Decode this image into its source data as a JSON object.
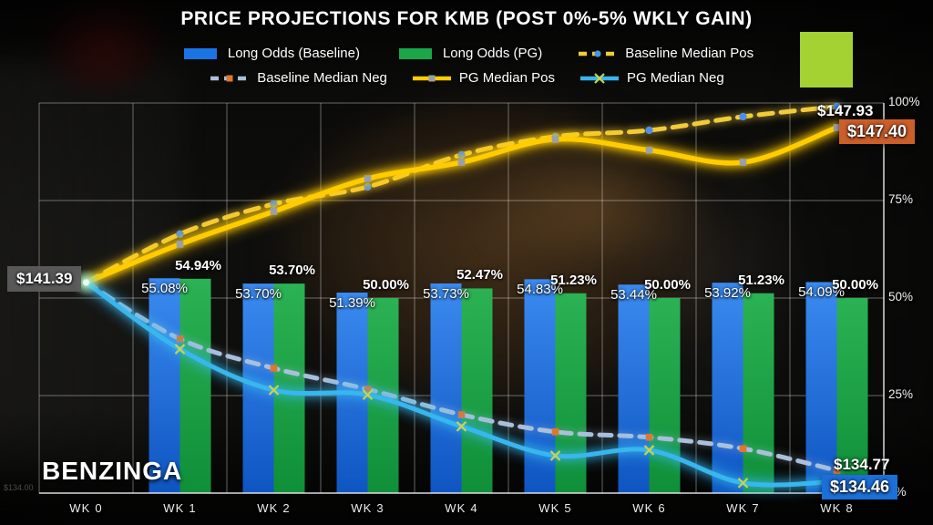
{
  "title": "PRICE PROJECTIONS FOR KMB (POST 0%-5% WKLY GAIN)",
  "watermark": "BENZINGA",
  "labels": {
    "start_price": "$141.39",
    "baseline_pos_end": "$147.93",
    "pg_pos_end": "$147.40",
    "baseline_neg_end": "$134.77",
    "pg_neg_end": "$134.46",
    "faint_axis": "$134.00"
  },
  "colors": {
    "blue_bar_top": "#3B8BF0",
    "blue_bar_bottom": "#0E55C2",
    "green_bar_top": "#2BB254",
    "green_bar_bottom": "#0F8F38",
    "baseline_pos_line": "#F2CB3A",
    "pg_pos_line": "#FFCC00",
    "baseline_neg_line": "#A9C0DC",
    "pg_neg_line": "#38B6EE",
    "marker_blue": "#4C8FE8",
    "marker_orange": "#E0762F",
    "marker_gray": "#9AA0A8",
    "marker_x": "#C9D24F",
    "box_orange": "#CC5E2A",
    "box_blue": "#1B6FD8",
    "box_gray": "rgba(92,92,92,0.95)",
    "green_rect": "#A4D233",
    "grid": "rgba(255,255,255,0.38)",
    "axis": "rgba(255,255,255,0.85)"
  },
  "legend": {
    "rows": [
      [
        {
          "label": "Long Odds (Baseline)",
          "swatch": "bar",
          "color": "#1B74E4"
        },
        {
          "label": "Long Odds (PG)",
          "swatch": "bar",
          "color": "#1CA64A"
        },
        {
          "label": "Baseline Median Pos",
          "swatch": "dash-dot",
          "color": "#F2CB3A",
          "marker_color": "#4C8FE8"
        }
      ],
      [
        {
          "label": "Baseline Median Neg",
          "swatch": "dash-square",
          "color": "#A9C0DC",
          "marker_color": "#E0762F"
        },
        {
          "label": "PG Median Pos",
          "swatch": "line-square",
          "color": "#FFCC00",
          "marker_color": "#9AA0A8"
        },
        {
          "label": "PG Median Neg",
          "swatch": "line-x",
          "color": "#38B6EE",
          "marker_color": "#C9D24F"
        }
      ]
    ]
  },
  "chart_data": {
    "type": "combo-bar-line",
    "categories": [
      "WK 0",
      "WK 1",
      "WK 2",
      "WK 3",
      "WK 4",
      "WK 5",
      "WK 6",
      "WK 7",
      "WK 8"
    ],
    "y_axis": {
      "side": "right",
      "range": [
        0,
        100
      ],
      "ticks": [
        "0%",
        "25%",
        "50%",
        "75%",
        "100%"
      ],
      "gridlines": true
    },
    "bar_series": [
      {
        "name": "Long Odds (Baseline)",
        "values": [
          null,
          55.08,
          53.7,
          51.39,
          53.73,
          54.83,
          53.44,
          53.92,
          54.09
        ],
        "labels": [
          "",
          "55.08%",
          "53.70%",
          "51.39%",
          "53.73%",
          "54.83%",
          "53.44%",
          "53.92%",
          "54.09%"
        ]
      },
      {
        "name": "Long Odds (PG)",
        "values": [
          null,
          54.94,
          53.7,
          50.0,
          52.47,
          51.23,
          50.0,
          51.23,
          50.0
        ],
        "labels": [
          "",
          "54.94%",
          "53.70%",
          "50.00%",
          "52.47%",
          "51.23%",
          "50.00%",
          "51.23%",
          "50.00%"
        ]
      }
    ],
    "line_series": [
      {
        "name": "Baseline Median Pos",
        "style": "dashed",
        "marker": "circle",
        "start_value": "$141.39",
        "end_value": "$147.93",
        "values_pct_est": [
          54.0,
          66.4,
          74.1,
          78.5,
          86.7,
          91.4,
          93.0,
          96.5,
          99.1
        ]
      },
      {
        "name": "PG Median Pos",
        "style": "solid",
        "marker": "square",
        "start_value": "$141.39",
        "end_value": "$147.40",
        "values_pct_est": [
          54.0,
          63.8,
          72.2,
          80.6,
          84.8,
          90.7,
          87.9,
          84.8,
          93.7
        ]
      },
      {
        "name": "Baseline Median Neg",
        "style": "dashed",
        "marker": "square",
        "start_value": "$141.39",
        "end_value": "$134.77",
        "values_pct_est": [
          54.0,
          39.5,
          32.0,
          26.6,
          20.1,
          15.7,
          14.3,
          11.4,
          5.8
        ]
      },
      {
        "name": "PG Median Neg",
        "style": "solid",
        "marker": "x",
        "start_value": "$141.39",
        "end_value": "$134.46",
        "values_pct_est": [
          54.0,
          36.9,
          26.4,
          25.2,
          17.1,
          9.6,
          11.0,
          2.6,
          3.0
        ]
      }
    ]
  }
}
